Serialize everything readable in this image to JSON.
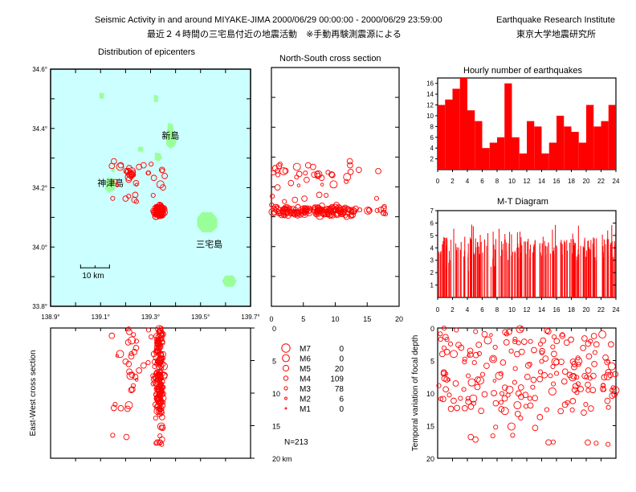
{
  "header": {
    "title_en": "Seismic Activity in and around MIYAKE-JIMA 2000/06/29 00:00:00 - 2000/06/29 23:59:00",
    "institute_en": "Earthquake Research Institute",
    "title_ja": "最近２４時間の三宅島付近の地震活動　※手動再験測震源による",
    "institute_ja": "東京大学地震研究所"
  },
  "colors": {
    "sea": "#ccffff",
    "land": "#99ff99",
    "quake": "#ff0000",
    "bar": "#ff0000"
  },
  "chart_data": [
    {
      "id": "epicenter-map",
      "type": "scatter",
      "title": "Distribution of epicenters",
      "xlim": [
        138.9,
        139.7
      ],
      "ylim": [
        33.8,
        34.6
      ],
      "x_ticks": [
        "138.9°",
        "139.1°",
        "139.3°",
        "139.5°",
        "139.7°"
      ],
      "y_ticks": [
        "34.6°",
        "34.4°",
        "34.2°",
        "34.0°",
        "33.8°"
      ],
      "scale_label": "10 km",
      "islands": [
        {
          "name": "新島",
          "lon": 139.38,
          "lat": 34.365
        },
        {
          "name": "神津島",
          "lon": 139.14,
          "lat": 34.205
        },
        {
          "name": "三宅島",
          "lon": 139.535,
          "lat": 34.0
        }
      ],
      "cluster_center": [
        139.335,
        34.125
      ]
    },
    {
      "id": "ns-section",
      "type": "scatter",
      "title": "North-South cross section",
      "xlim": [
        0,
        20
      ],
      "x_ticks": [
        "0",
        "5",
        "10",
        "15",
        "20"
      ]
    },
    {
      "id": "ew-section",
      "type": "scatter",
      "ylabel": "East-West cross section",
      "ylim": [
        0,
        20
      ],
      "y_ticks": [
        "0",
        "5",
        "10",
        "15",
        "20 km"
      ]
    },
    {
      "id": "hourly-histogram",
      "type": "bar",
      "title": "Hourly number of earthquakes",
      "x": [
        0,
        1,
        2,
        3,
        4,
        5,
        6,
        7,
        8,
        9,
        10,
        11,
        12,
        13,
        14,
        15,
        16,
        17,
        18,
        19,
        20,
        21,
        22,
        23
      ],
      "values": [
        12,
        13,
        15,
        17,
        11,
        9,
        4,
        5,
        6,
        16,
        6,
        3,
        9,
        8,
        3,
        5,
        10,
        8,
        7,
        5,
        12,
        8,
        9,
        12
      ],
      "ylim": [
        0,
        17
      ],
      "y_ticks": [
        "16",
        "14",
        "12",
        "10",
        "8",
        "6",
        "4",
        "2"
      ],
      "x_ticks": [
        "0",
        "2",
        "4",
        "6",
        "8",
        "10",
        "12",
        "14",
        "16",
        "18",
        "20",
        "22",
        "24"
      ]
    },
    {
      "id": "mt-diagram",
      "type": "bar",
      "title": "M-T Diagram",
      "xlim": [
        0,
        24
      ],
      "ylim": [
        0,
        7
      ],
      "y_ticks": [
        "7",
        "6",
        "5",
        "4",
        "3",
        "2",
        "1"
      ],
      "x_ticks": [
        "0",
        "2",
        "4",
        "6",
        "8",
        "10",
        "12",
        "14",
        "16",
        "18",
        "20",
        "22",
        "24"
      ]
    },
    {
      "id": "depth-time",
      "type": "scatter",
      "ylabel": "Temporal variation of focal depth",
      "xlim": [
        0,
        24
      ],
      "ylim": [
        0,
        20
      ],
      "y_ticks": [
        "0",
        "5",
        "10",
        "15",
        "20"
      ]
    }
  ],
  "legend": {
    "items": [
      {
        "label": "M7",
        "count": "0"
      },
      {
        "label": "M6",
        "count": "0"
      },
      {
        "label": "M5",
        "count": "20"
      },
      {
        "label": "M4",
        "count": "109"
      },
      {
        "label": "M3",
        "count": "78"
      },
      {
        "label": "M2",
        "count": "6"
      },
      {
        "label": "M1",
        "count": "0"
      }
    ],
    "total": "N=213"
  }
}
